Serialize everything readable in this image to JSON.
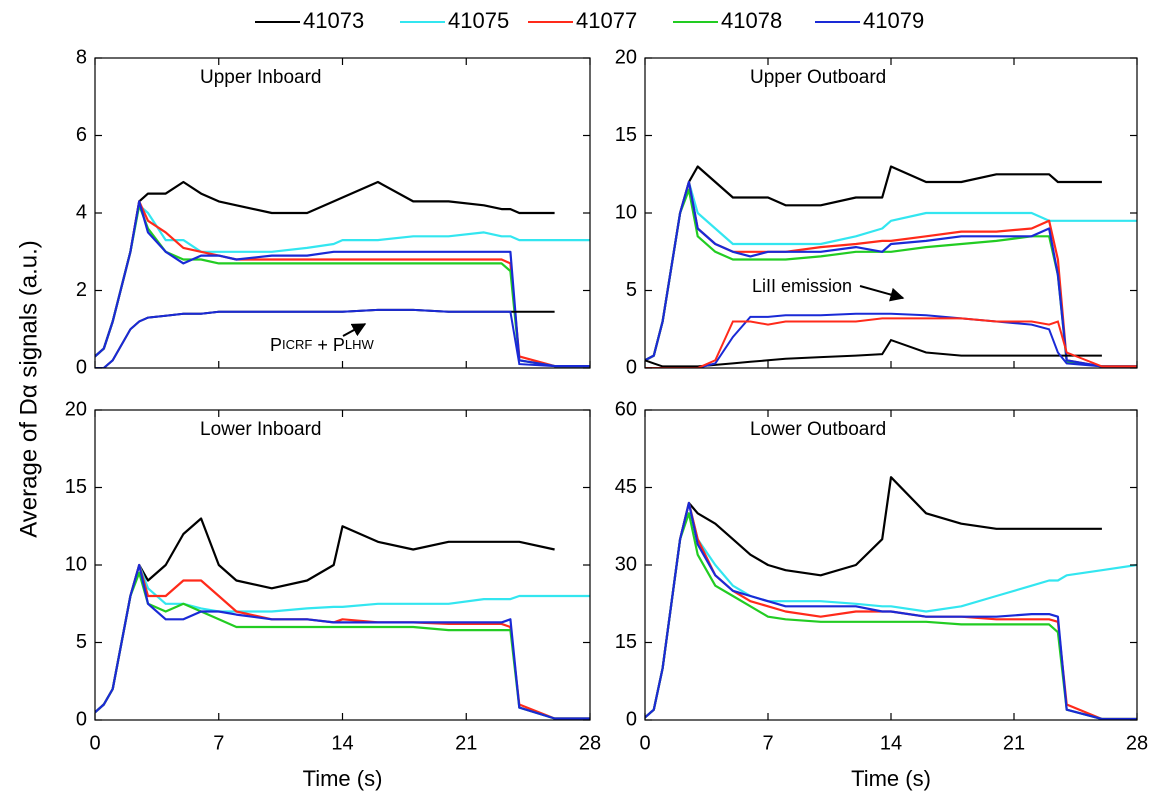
{
  "chart_data": [
    {
      "type": "line",
      "title": "Upper Inboard",
      "ylabel": "Average of Dα signals (a.u.)",
      "annotation": [
        "P",
        "ICRF",
        " + P",
        "LHW"
      ],
      "x": [
        0,
        0.5,
        1,
        2,
        2.5,
        3,
        4,
        5,
        6,
        7,
        8,
        10,
        12,
        13.5,
        14,
        16,
        18,
        20,
        22,
        23,
        23.5,
        24,
        26,
        28
      ],
      "xlim": [
        0,
        28
      ],
      "xticks": [
        0,
        7,
        14,
        21,
        28
      ],
      "ylim": [
        0,
        8
      ],
      "yticks": [
        0,
        2,
        4,
        6,
        8
      ],
      "series": [
        {
          "name": "41073",
          "color": "#000000",
          "values": [
            0.3,
            0.5,
            1.2,
            3,
            4.3,
            4.5,
            4.5,
            4.8,
            4.5,
            4.3,
            4.2,
            4,
            4,
            4.3,
            4.4,
            4.8,
            4.3,
            4.3,
            4.2,
            4.1,
            4.1,
            4.0,
            4.0,
            null
          ]
        },
        {
          "name": "41075",
          "color": "#33e6f0",
          "values": [
            0.3,
            0.5,
            1.2,
            3,
            4.2,
            4,
            3.3,
            3.3,
            3,
            3,
            3,
            3,
            3.1,
            3.2,
            3.3,
            3.3,
            3.4,
            3.4,
            3.5,
            3.4,
            3.4,
            3.3,
            3.3,
            3.3
          ]
        },
        {
          "name": "41077",
          "color": "#ff2a1a",
          "values": [
            0.3,
            0.5,
            1.2,
            3,
            4.3,
            3.8,
            3.5,
            3.1,
            3,
            2.9,
            2.8,
            2.8,
            2.8,
            2.8,
            2.8,
            2.8,
            2.8,
            2.8,
            2.8,
            2.8,
            2.7,
            0.3,
            0.05,
            0.05
          ]
        },
        {
          "name": "41078",
          "color": "#22cc22",
          "values": [
            0.3,
            0.5,
            1.2,
            3,
            4.2,
            3.6,
            3,
            2.8,
            2.8,
            2.7,
            2.7,
            2.7,
            2.7,
            2.7,
            2.7,
            2.7,
            2.7,
            2.7,
            2.7,
            2.7,
            2.5,
            0.2,
            0.05,
            0.05
          ]
        },
        {
          "name": "41079",
          "color": "#1a2ad6",
          "values": [
            0.3,
            0.5,
            1.2,
            3,
            4.3,
            3.5,
            3,
            2.7,
            2.9,
            2.9,
            2.8,
            2.9,
            2.9,
            3,
            3,
            3,
            3,
            3,
            3,
            3,
            3.0,
            0.2,
            0.05,
            0.05
          ]
        }
      ],
      "lines": [
        {
          "color": "#000000",
          "values": [
            0,
            0,
            0.2,
            1.0,
            1.2,
            1.3,
            1.35,
            1.4,
            1.4,
            1.45,
            1.45,
            1.45,
            1.45,
            1.45,
            1.45,
            1.5,
            1.5,
            1.45,
            1.45,
            1.45,
            1.45,
            1.45,
            1.45,
            null
          ]
        },
        {
          "color": "#1a2ad6",
          "values": [
            0,
            0,
            0.2,
            1.0,
            1.2,
            1.3,
            1.35,
            1.4,
            1.4,
            1.45,
            1.45,
            1.45,
            1.45,
            1.45,
            1.45,
            1.5,
            1.5,
            1.45,
            1.45,
            1.45,
            1.45,
            0.1,
            0.05,
            0.05
          ]
        }
      ]
    },
    {
      "type": "line",
      "title": "Upper Outboard",
      "annotation": [
        "LiII emission"
      ],
      "x": [
        0,
        0.5,
        1,
        2,
        2.5,
        3,
        4,
        5,
        6,
        7,
        8,
        10,
        12,
        13.5,
        14,
        16,
        18,
        20,
        22,
        23,
        23.5,
        24,
        26,
        28
      ],
      "xlim": [
        0,
        28
      ],
      "xticks": [
        0,
        7,
        14,
        21,
        28
      ],
      "ylim": [
        0,
        20
      ],
      "yticks": [
        0,
        5,
        10,
        15,
        20
      ],
      "series": [
        {
          "name": "41073",
          "color": "#000000",
          "values": [
            0.5,
            0.8,
            3,
            10,
            12,
            13,
            12,
            11,
            11,
            11,
            10.5,
            10.5,
            11,
            11,
            13,
            12,
            12,
            12.5,
            12.5,
            12.5,
            12,
            12,
            12,
            null
          ]
        },
        {
          "name": "41075",
          "color": "#33e6f0",
          "values": [
            0.5,
            0.8,
            3,
            10,
            12,
            10,
            9,
            8,
            8,
            8,
            8,
            8,
            8.5,
            9,
            9.5,
            10,
            10,
            10,
            10,
            9.5,
            9.5,
            9.5,
            9.5,
            9.5
          ]
        },
        {
          "name": "41077",
          "color": "#ff2a1a",
          "values": [
            0.5,
            0.8,
            3,
            10,
            12,
            9,
            8,
            7.5,
            7.5,
            7.5,
            7.5,
            7.8,
            8,
            8.2,
            8.2,
            8.5,
            8.8,
            8.8,
            9,
            9.5,
            7,
            0.5,
            0.1,
            0.1
          ]
        },
        {
          "name": "41078",
          "color": "#22cc22",
          "values": [
            0.5,
            0.8,
            3,
            10,
            11.5,
            8.5,
            7.5,
            7,
            7,
            7,
            7,
            7.2,
            7.5,
            7.5,
            7.5,
            7.8,
            8,
            8.2,
            8.5,
            8.5,
            6,
            0.4,
            0.1,
            0.1
          ]
        },
        {
          "name": "41079",
          "color": "#1a2ad6",
          "values": [
            0.5,
            0.8,
            3,
            10,
            12,
            9,
            8,
            7.5,
            7.2,
            7.5,
            7.5,
            7.5,
            7.8,
            7.5,
            8,
            8.2,
            8.5,
            8.5,
            8.5,
            9,
            6,
            0.5,
            0.1,
            0.1
          ]
        }
      ],
      "lines": [
        {
          "color": "#000000",
          "values": [
            0.5,
            0.3,
            0.1,
            0.1,
            0.1,
            0.1,
            0.2,
            0.3,
            0.4,
            0.5,
            0.6,
            0.7,
            0.8,
            0.9,
            1.8,
            1,
            0.8,
            0.8,
            0.8,
            0.8,
            0.8,
            0.8,
            0.8,
            null
          ]
        },
        {
          "color": "#1a2ad6",
          "values": [
            0,
            0,
            0,
            0,
            0,
            0,
            0.3,
            2,
            3.3,
            3.3,
            3.4,
            3.4,
            3.5,
            3.5,
            3.5,
            3.4,
            3.2,
            3,
            2.8,
            2.5,
            1,
            0.3,
            0.1,
            0.1
          ]
        },
        {
          "color": "#ff2a1a",
          "values": [
            0,
            0,
            0,
            0,
            0,
            0,
            0.5,
            3,
            3,
            2.8,
            3,
            3,
            3,
            3.2,
            3.2,
            3.2,
            3.2,
            3,
            3,
            2.8,
            3,
            1,
            0.1,
            0.1
          ]
        }
      ]
    },
    {
      "type": "line",
      "title": "Lower Inboard",
      "xlabel": "Time (s)",
      "x": [
        0,
        0.5,
        1,
        2,
        2.5,
        3,
        4,
        5,
        6,
        7,
        8,
        10,
        12,
        13.5,
        14,
        16,
        18,
        20,
        22,
        23,
        23.5,
        24,
        26,
        28
      ],
      "xlim": [
        0,
        28
      ],
      "xticks": [
        0,
        7,
        14,
        21,
        28
      ],
      "ylim": [
        0,
        20
      ],
      "yticks": [
        0,
        5,
        10,
        15,
        20
      ],
      "series": [
        {
          "name": "41073",
          "color": "#000000",
          "values": [
            0.5,
            1,
            2,
            8,
            10,
            9,
            10,
            12,
            13,
            10,
            9,
            8.5,
            9,
            10,
            12.5,
            11.5,
            11,
            11.5,
            11.5,
            11.5,
            11.5,
            11.5,
            11,
            null
          ]
        },
        {
          "name": "41075",
          "color": "#33e6f0",
          "values": [
            0.5,
            1,
            2,
            8,
            10,
            8.5,
            7.5,
            7.5,
            7.2,
            7,
            7,
            7,
            7.2,
            7.3,
            7.3,
            7.5,
            7.5,
            7.5,
            7.8,
            7.8,
            7.8,
            8,
            8,
            8
          ]
        },
        {
          "name": "41077",
          "color": "#ff2a1a",
          "values": [
            0.5,
            1,
            2,
            8,
            10,
            8,
            8,
            9,
            9,
            8,
            7,
            6.5,
            6.5,
            6.3,
            6.5,
            6.3,
            6.3,
            6.2,
            6.2,
            6.2,
            6,
            1,
            0.1,
            0.1
          ]
        },
        {
          "name": "41078",
          "color": "#22cc22",
          "values": [
            0.5,
            1,
            2,
            8,
            9.5,
            7.5,
            7,
            7.5,
            7,
            6.5,
            6,
            6,
            6,
            6,
            6,
            6,
            6,
            5.8,
            5.8,
            5.8,
            5.8,
            0.8,
            0.1,
            0.1
          ]
        },
        {
          "name": "41079",
          "color": "#1a2ad6",
          "values": [
            0.5,
            1,
            2,
            8,
            10,
            7.5,
            6.5,
            6.5,
            7,
            7,
            6.8,
            6.5,
            6.5,
            6.3,
            6.3,
            6.3,
            6.3,
            6.3,
            6.3,
            6.3,
            6.5,
            0.8,
            0.1,
            0.1
          ]
        }
      ]
    },
    {
      "type": "line",
      "title": "Lower Outboard",
      "xlabel": "Time (s)",
      "x": [
        0,
        0.5,
        1,
        2,
        2.5,
        3,
        4,
        5,
        6,
        7,
        8,
        10,
        12,
        13.5,
        14,
        16,
        18,
        20,
        22,
        23,
        23.5,
        24,
        26,
        28
      ],
      "xlim": [
        0,
        28
      ],
      "xticks": [
        0,
        7,
        14,
        21,
        28
      ],
      "ylim": [
        0,
        60
      ],
      "yticks": [
        0,
        15,
        30,
        45,
        60
      ],
      "series": [
        {
          "name": "41073",
          "color": "#000000",
          "values": [
            0.5,
            2,
            10,
            35,
            42,
            40,
            38,
            35,
            32,
            30,
            29,
            28,
            30,
            35,
            47,
            40,
            38,
            37,
            37,
            37,
            37,
            37,
            37,
            null
          ]
        },
        {
          "name": "41075",
          "color": "#33e6f0",
          "values": [
            0.5,
            2,
            10,
            35,
            42,
            35,
            30,
            26,
            24,
            23,
            23,
            23,
            22.5,
            22,
            22,
            21,
            22,
            24,
            26,
            27,
            27,
            28,
            29,
            30
          ]
        },
        {
          "name": "41077",
          "color": "#ff2a1a",
          "values": [
            0.5,
            2,
            10,
            35,
            42,
            35,
            28,
            25,
            23,
            22,
            21,
            20,
            21,
            21,
            21,
            20,
            20,
            19.5,
            19.5,
            19.5,
            19,
            3,
            0.2,
            0.2
          ]
        },
        {
          "name": "41078",
          "color": "#22cc22",
          "values": [
            0.5,
            2,
            10,
            35,
            40,
            32,
            26,
            24,
            22,
            20,
            19.5,
            19,
            19,
            19,
            19,
            19,
            18.5,
            18.5,
            18.5,
            18.5,
            17,
            2,
            0.2,
            0.2
          ]
        },
        {
          "name": "41079",
          "color": "#1a2ad6",
          "values": [
            0.5,
            2,
            10,
            35,
            42,
            34,
            28,
            25,
            24,
            23,
            22,
            22,
            22,
            21,
            21,
            20,
            20,
            20,
            20.5,
            20.5,
            20,
            2,
            0.2,
            0.2
          ]
        }
      ]
    }
  ]
}
